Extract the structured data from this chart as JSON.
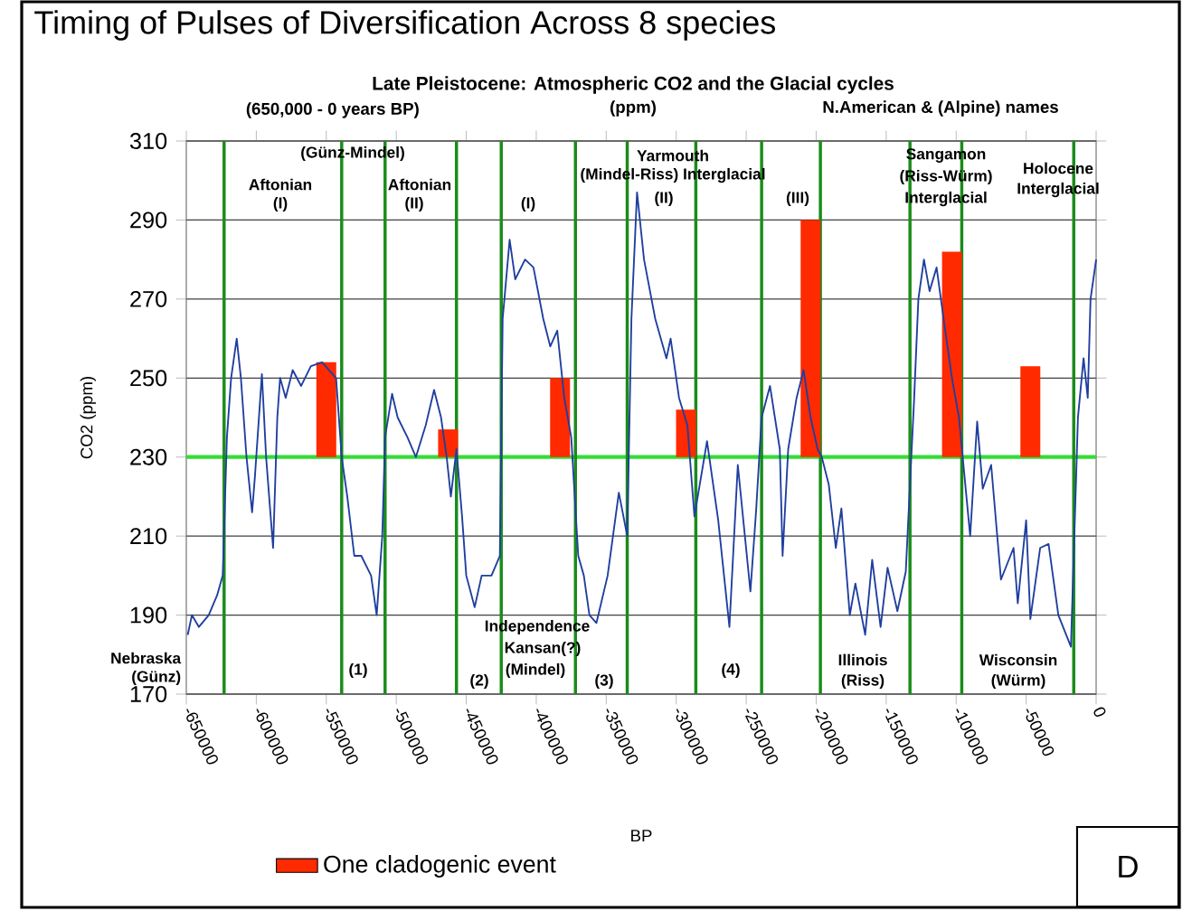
{
  "chart_data": {
    "type": "line",
    "title": "Timing of Pulses of Diversification Across 8 species",
    "subtitle": "Late Pleistocene: Atmospheric CO2 and the Glacial cycles",
    "xlabel": "BP",
    "ylabel": "CO2 (ppm)",
    "xlim": [
      -650000,
      0
    ],
    "ylim": [
      170,
      310
    ],
    "xticks": [
      -650000,
      -600000,
      -550000,
      -500000,
      -450000,
      -400000,
      -350000,
      -300000,
      -250000,
      -200000,
      -150000,
      -100000,
      -50000,
      0
    ],
    "yticks": [
      170,
      190,
      210,
      230,
      250,
      270,
      290,
      310
    ],
    "grid": "y",
    "legend": "bottom",
    "marker": "none",
    "series": [
      {
        "color": "#1f3f9f",
        "x": [
          -649000,
          -646000,
          -641000,
          -634000,
          -628000,
          -624000,
          -621000,
          -618000,
          -614000,
          -611000,
          -607000,
          -603000,
          -601000,
          -596000,
          -593000,
          -588000,
          -585000,
          -583000,
          -579000,
          -574000,
          -568000,
          -561000,
          -553000,
          -543000,
          -539000,
          -535000,
          -530000,
          -525000,
          -518000,
          -514000,
          -510000,
          -508000,
          -503000,
          -499000,
          -492000,
          -486000,
          -479000,
          -473000,
          -468000,
          -464000,
          -461000,
          -457000,
          -453000,
          -450000,
          -444000,
          -439000,
          -432000,
          -426000,
          -424000,
          -419000,
          -415000,
          -408000,
          -402000,
          -395000,
          -390000,
          -385000,
          -380000,
          -375000,
          -370000,
          -366000,
          -362000,
          -357000,
          -349000,
          -341000,
          -335000,
          -332000,
          -328000,
          -323000,
          -315000,
          -307000,
          -304000,
          -298000,
          -292000,
          -287000,
          -278000,
          -270000,
          -262000,
          -256000,
          -247000,
          -243000,
          -239000,
          -233000,
          -226000,
          -224000,
          -220000,
          -214000,
          -209000,
          -204000,
          -199000,
          -196000,
          -191000,
          -186000,
          -182000,
          -176000,
          -172000,
          -165000,
          -160000,
          -154000,
          -149000,
          -142000,
          -136000,
          -130000,
          -127000,
          -123000,
          -119000,
          -114000,
          -109000,
          -103000,
          -98000,
          -90000,
          -85000,
          -81000,
          -75000,
          -68000,
          -59000,
          -56000,
          -50000,
          -47000,
          -40000,
          -34000,
          -27000,
          -18000,
          -13000,
          -9000,
          -6000,
          -4000,
          0
        ],
        "values": [
          185,
          190,
          187,
          190,
          195,
          200,
          235,
          250,
          260,
          250,
          230,
          216,
          225,
          251,
          230,
          207,
          240,
          250,
          245,
          252,
          248,
          253,
          254,
          250,
          230,
          220,
          205,
          205,
          200,
          190,
          210,
          235,
          246,
          240,
          235,
          230,
          238,
          247,
          240,
          230,
          220,
          232,
          215,
          200,
          192,
          200,
          200,
          205,
          265,
          285,
          275,
          280,
          278,
          265,
          258,
          262,
          245,
          235,
          205,
          200,
          190,
          188,
          200,
          221,
          210,
          265,
          297,
          280,
          265,
          255,
          260,
          245,
          238,
          215,
          234,
          214,
          187,
          228,
          196,
          216,
          240,
          248,
          232,
          205,
          232,
          245,
          252,
          240,
          232,
          230,
          223,
          207,
          217,
          190,
          198,
          185,
          204,
          187,
          202,
          191,
          201,
          245,
          270,
          280,
          272,
          278,
          265,
          250,
          240,
          210,
          239,
          222,
          228,
          199,
          207,
          193,
          214,
          189,
          207,
          208,
          190,
          182,
          240,
          255,
          245,
          270,
          280
        ]
      },
      {
        "type": "bar",
        "name": "One cladogenic event",
        "color": "#ff2a00",
        "x": [
          -550000,
          -463000,
          -383000,
          -293000,
          -204000,
          -103000,
          -47000
        ],
        "values": [
          24,
          7,
          20,
          12,
          60,
          52,
          23
        ],
        "base": [
          230,
          230,
          230,
          230,
          230,
          230,
          230
        ]
      }
    ],
    "ref_lines": [
      {
        "axis": "y",
        "value": 230,
        "color": "#33dd33"
      },
      {
        "axis": "x",
        "value": -623000,
        "color": "#1a8c1a"
      },
      {
        "axis": "x",
        "value": -539000,
        "color": "#1a8c1a"
      },
      {
        "axis": "x",
        "value": -508000,
        "color": "#1a8c1a"
      },
      {
        "axis": "x",
        "value": -457000,
        "color": "#1a8c1a"
      },
      {
        "axis": "x",
        "value": -425000,
        "color": "#1a8c1a"
      },
      {
        "axis": "x",
        "value": -372000,
        "color": "#1a8c1a"
      },
      {
        "axis": "x",
        "value": -335000,
        "color": "#1a8c1a"
      },
      {
        "axis": "x",
        "value": -286000,
        "color": "#1a8c1a"
      },
      {
        "axis": "x",
        "value": -239000,
        "color": "#1a8c1a"
      },
      {
        "axis": "x",
        "value": -197000,
        "color": "#1a8c1a"
      },
      {
        "axis": "x",
        "value": -133000,
        "color": "#1a8c1a"
      },
      {
        "axis": "x",
        "value": -96000,
        "color": "#1a8c1a"
      },
      {
        "axis": "x",
        "value": -16000,
        "color": "#1a8c1a"
      }
    ],
    "annotations": [
      "(650,000 - 0 years BP)",
      "(ppm)",
      "N.American & (Alpine) names",
      "D",
      "(Günz-Mindel)",
      "Aftonian",
      "(I)",
      "Aftonian",
      "(II)",
      "(I)",
      "Yarmouth",
      "(Mindel-Riss) Interglacial",
      "(II)",
      "(III)",
      "Sangamon",
      "(Riss-Würm)",
      "Interglacial",
      "Holocene",
      "Interglacial",
      "Nebraska",
      "(Günz)",
      "Independence",
      "Kansan(?)",
      "(1)",
      "(2)",
      "(Mindel)",
      "(3)",
      "(4)",
      "Illinois",
      "(Riss)",
      "Wisconsin",
      "(Würm)"
    ]
  }
}
